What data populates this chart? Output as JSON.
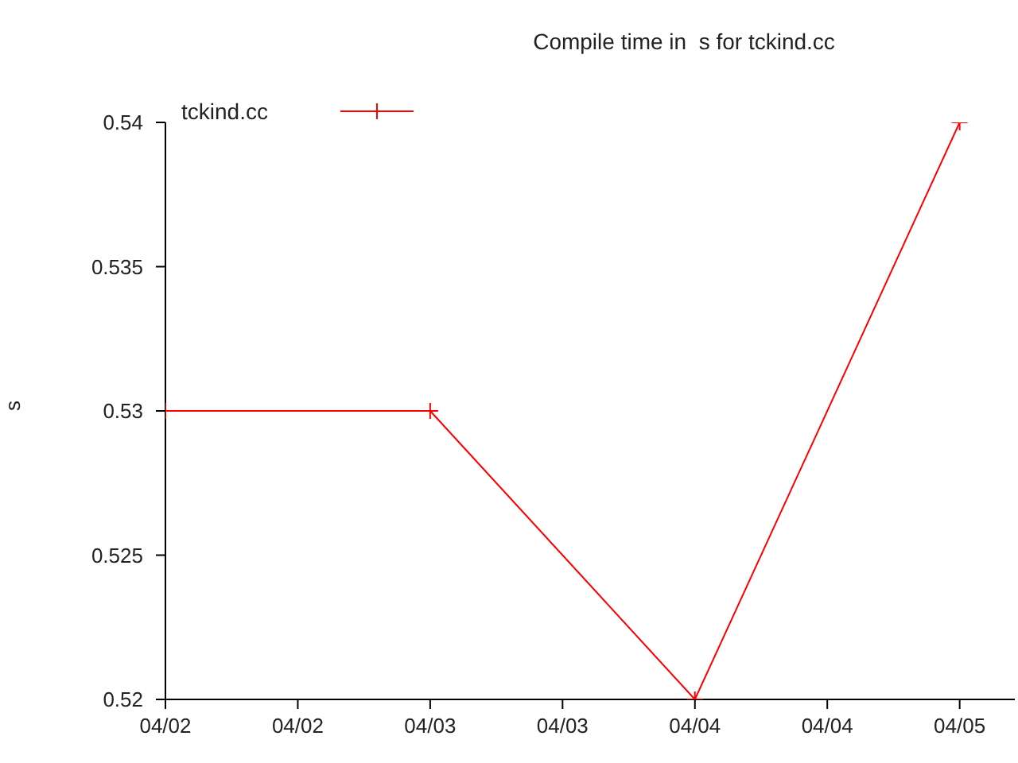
{
  "chart_data": {
    "type": "line",
    "title": "Compile time in  s for tckind.cc",
    "ylabel": "s",
    "x": [
      "--04-02",
      "--04-03",
      "--04-04",
      "--04-05"
    ],
    "series": [
      {
        "name": "tckind.cc",
        "color": "#ff0000",
        "values": [
          0.53,
          0.53,
          0.52,
          0.54
        ]
      }
    ],
    "xlim": [
      "--04-02",
      "--04-05T05:00"
    ],
    "xticks": [
      {
        "value": "--04-02",
        "label": "04/02"
      },
      {
        "value": "--04-02T12:00",
        "label": "04/02"
      },
      {
        "value": "--04-03",
        "label": "04/03"
      },
      {
        "value": "--04-03T12:00",
        "label": "04/03"
      },
      {
        "value": "--04-04",
        "label": "04/04"
      },
      {
        "value": "--04-04T12:00",
        "label": "04/04"
      },
      {
        "value": "--04-05",
        "label": "04/05"
      }
    ],
    "ylim": [
      0.52,
      0.54
    ],
    "yticks": [
      0.52,
      0.525,
      0.53,
      0.535,
      0.54
    ],
    "legend": "top left",
    "marker": "cross",
    "line_style": "solid",
    "grid": false
  }
}
